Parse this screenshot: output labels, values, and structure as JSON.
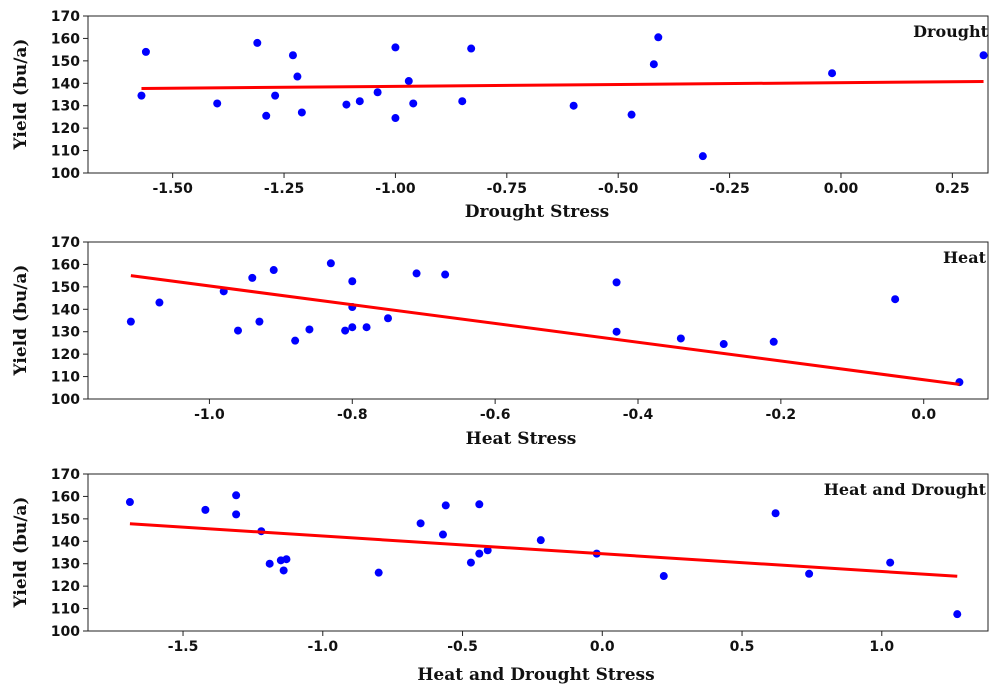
{
  "colors": {
    "point": "#0000ff",
    "fit_line": "#ff0000",
    "axis": "#222222"
  },
  "chart_data": [
    {
      "type": "scatter",
      "panel_label": "Drought",
      "xlabel": "Drought Stress",
      "ylabel": "Yield (bu/a)",
      "xlim": [
        -1.69,
        0.33
      ],
      "ylim": [
        100,
        170
      ],
      "xticks": [
        -1.5,
        -1.25,
        -1.0,
        -0.75,
        -0.5,
        -0.25,
        0.0,
        0.25
      ],
      "xtick_labels": [
        "-1.50",
        "-1.25",
        "-1.00",
        "-0.75",
        "-0.50",
        "-0.25",
        "0.00",
        "0.25"
      ],
      "yticks": [
        100,
        110,
        120,
        130,
        140,
        150,
        160,
        170
      ],
      "ytick_labels": [
        "100",
        "110",
        "120",
        "130",
        "140",
        "150",
        "160",
        "170"
      ],
      "points": [
        [
          -1.57,
          134.5
        ],
        [
          -1.56,
          154
        ],
        [
          -1.4,
          131
        ],
        [
          -1.31,
          158
        ],
        [
          -1.29,
          125.5
        ],
        [
          -1.27,
          134.5
        ],
        [
          -1.23,
          152.5
        ],
        [
          -1.22,
          143
        ],
        [
          -1.21,
          127
        ],
        [
          -1.11,
          130.5
        ],
        [
          -1.08,
          132
        ],
        [
          -1.04,
          136
        ],
        [
          -1.0,
          156
        ],
        [
          -1.0,
          124.5
        ],
        [
          -0.97,
          141
        ],
        [
          -0.96,
          131
        ],
        [
          -0.85,
          132
        ],
        [
          -0.83,
          155.5
        ],
        [
          -0.6,
          130
        ],
        [
          -0.47,
          126
        ],
        [
          -0.42,
          148.5
        ],
        [
          -0.41,
          160.5
        ],
        [
          -0.31,
          107.5
        ],
        [
          -0.02,
          144.5
        ],
        [
          0.32,
          152.5
        ]
      ],
      "fit": {
        "x": [
          -1.57,
          0.32
        ],
        "y": [
          137.7,
          140.8
        ]
      }
    },
    {
      "type": "scatter",
      "panel_label": "Heat",
      "xlabel": "Heat Stress",
      "ylabel": "Yield (bu/a)",
      "xlim": [
        -1.17,
        0.09
      ],
      "ylim": [
        100,
        170
      ],
      "xticks": [
        -1.0,
        -0.8,
        -0.6,
        -0.4,
        -0.2,
        0.0
      ],
      "xtick_labels": [
        "-1.0",
        "-0.8",
        "-0.6",
        "-0.4",
        "-0.2",
        "0.0"
      ],
      "yticks": [
        100,
        110,
        120,
        130,
        140,
        150,
        160,
        170
      ],
      "ytick_labels": [
        "100",
        "110",
        "120",
        "130",
        "140",
        "150",
        "160",
        "170"
      ],
      "points": [
        [
          -1.11,
          134.5
        ],
        [
          -1.07,
          143
        ],
        [
          -0.98,
          148
        ],
        [
          -0.96,
          130.5
        ],
        [
          -0.94,
          154
        ],
        [
          -0.93,
          134.5
        ],
        [
          -0.91,
          157.5
        ],
        [
          -0.88,
          126
        ],
        [
          -0.86,
          131
        ],
        [
          -0.83,
          160.5
        ],
        [
          -0.81,
          130.5
        ],
        [
          -0.8,
          152.5
        ],
        [
          -0.8,
          141
        ],
        [
          -0.8,
          132
        ],
        [
          -0.78,
          132
        ],
        [
          -0.75,
          136
        ],
        [
          -0.71,
          156
        ],
        [
          -0.67,
          155.5
        ],
        [
          -0.43,
          152
        ],
        [
          -0.43,
          130
        ],
        [
          -0.34,
          127
        ],
        [
          -0.28,
          124.5
        ],
        [
          -0.21,
          125.5
        ],
        [
          -0.04,
          144.5
        ],
        [
          0.05,
          107.5
        ]
      ],
      "fit": {
        "x": [
          -1.11,
          0.05
        ],
        "y": [
          155.0,
          106.5
        ]
      }
    },
    {
      "type": "scatter",
      "panel_label": "Heat and Drought",
      "xlabel": "Heat and Drought Stress",
      "ylabel": "Yield (bu/a)",
      "xlim": [
        -1.84,
        1.38
      ],
      "ylim": [
        100,
        170
      ],
      "xticks": [
        -1.5,
        -1.0,
        -0.5,
        0.0,
        0.5,
        1.0
      ],
      "xtick_labels": [
        "-1.5",
        "-1.0",
        "-0.5",
        "0.0",
        "0.5",
        "1.0"
      ],
      "yticks": [
        100,
        110,
        120,
        130,
        140,
        150,
        160,
        170
      ],
      "ytick_labels": [
        "100",
        "110",
        "120",
        "130",
        "140",
        "150",
        "160",
        "170"
      ],
      "points": [
        [
          -1.69,
          157.5
        ],
        [
          -1.42,
          154
        ],
        [
          -1.31,
          160.5
        ],
        [
          -1.31,
          152
        ],
        [
          -1.22,
          144.5
        ],
        [
          -1.19,
          130
        ],
        [
          -1.15,
          131.5
        ],
        [
          -1.14,
          127
        ],
        [
          -1.13,
          132
        ],
        [
          -0.8,
          126
        ],
        [
          -0.65,
          148
        ],
        [
          -0.57,
          143
        ],
        [
          -0.56,
          156
        ],
        [
          -0.47,
          130.5
        ],
        [
          -0.44,
          134.5
        ],
        [
          -0.44,
          156.5
        ],
        [
          -0.41,
          136
        ],
        [
          -0.22,
          140.5
        ],
        [
          -0.02,
          134.5
        ],
        [
          0.22,
          124.5
        ],
        [
          0.62,
          152.5
        ],
        [
          0.74,
          125.5
        ],
        [
          1.03,
          130.5
        ],
        [
          1.27,
          107.5
        ]
      ],
      "fit": {
        "x": [
          -1.69,
          1.27
        ],
        "y": [
          147.8,
          124.4
        ]
      }
    }
  ]
}
